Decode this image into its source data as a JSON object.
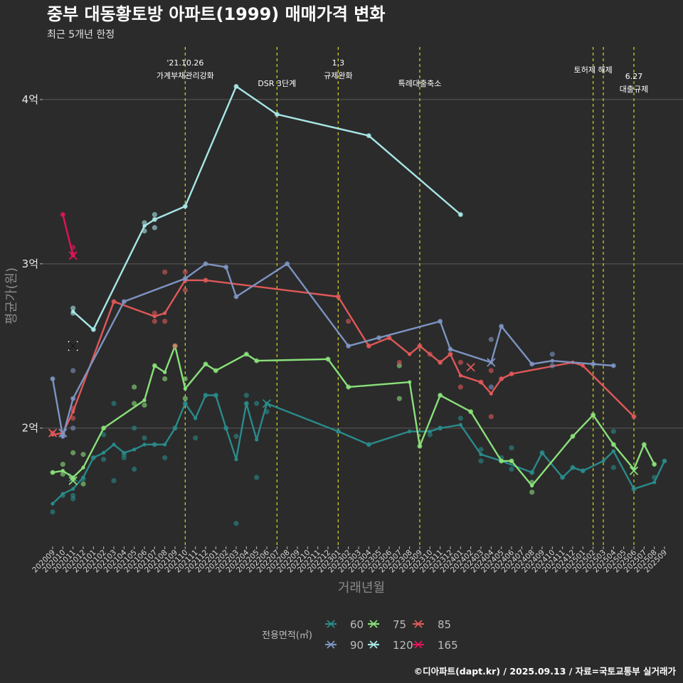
{
  "chart_data": {
    "type": "line",
    "title": "중부 대동황토방 아파트(1999) 매매가격 변화",
    "subtitle": "최근 5개년 한정",
    "xlabel": "거래년월",
    "ylabel": "평균가(원)",
    "y_ticks": [
      {
        "value": 2.0,
        "label": "2억"
      },
      {
        "value": 3.0,
        "label": "3억"
      },
      {
        "value": 4.0,
        "label": "4억"
      }
    ],
    "ylim": [
      1.28,
      4.32
    ],
    "grid": true,
    "legend_position": "bottom",
    "legend_title": "전용면적(㎡)",
    "credit": "©디아파트(dapt.kr) / 2025.09.13 / 자료=국토교통부 실거래가",
    "months": [
      "202009",
      "202010",
      "202011",
      "202012",
      "202101",
      "202102",
      "202103",
      "202104",
      "202105",
      "202106",
      "202107",
      "202108",
      "202109",
      "202110",
      "202111",
      "202112",
      "202201",
      "202202",
      "202203",
      "202204",
      "202205",
      "202206",
      "202207",
      "202208",
      "202209",
      "202210",
      "202211",
      "202212",
      "202301",
      "202302",
      "202303",
      "202304",
      "202305",
      "202306",
      "202307",
      "202308",
      "202309",
      "202310",
      "202311",
      "202312",
      "202401",
      "202402",
      "202403",
      "202404",
      "202405",
      "202406",
      "202407",
      "202408",
      "202409",
      "202410",
      "202411",
      "202412",
      "202501",
      "202502",
      "202503",
      "202504",
      "202505",
      "202506",
      "202507",
      "202508",
      "202509"
    ],
    "annotations": [
      {
        "x": 13,
        "lines": [
          "'21.10.26",
          "가계부채관리강화"
        ]
      },
      {
        "x": 22,
        "lines": [
          "DSR 3단계"
        ]
      },
      {
        "x": 28,
        "lines": [
          "1.3",
          "규제완화"
        ]
      },
      {
        "x": 36,
        "lines": [
          "특례대출축소"
        ]
      },
      {
        "x": 53,
        "lines": [
          "토허제 해제"
        ]
      },
      {
        "x": 54,
        "lines": []
      },
      {
        "x": 57,
        "lines": [
          "6.27",
          "대출규제"
        ]
      }
    ],
    "series": [
      {
        "name": "60",
        "color": "#2a8a8a",
        "line": [
          [
            0,
            1.54
          ],
          [
            1,
            1.6
          ],
          [
            2,
            1.63
          ],
          [
            3,
            1.7
          ],
          [
            4,
            1.82
          ],
          [
            5,
            1.85
          ],
          [
            6,
            1.9
          ],
          [
            7,
            1.85
          ],
          [
            8,
            1.87
          ],
          [
            9,
            1.9
          ],
          [
            10,
            1.9
          ],
          [
            11,
            1.9
          ],
          [
            12,
            2.0
          ],
          [
            13,
            2.15
          ],
          [
            14,
            2.06
          ],
          [
            15,
            2.2
          ],
          [
            16,
            2.2
          ],
          [
            17,
            2.0
          ],
          [
            18,
            1.81
          ],
          [
            19,
            2.15
          ],
          [
            20,
            1.93
          ],
          [
            21,
            2.15
          ],
          [
            28,
            1.98
          ],
          [
            31,
            1.9
          ],
          [
            35,
            1.98
          ],
          [
            37,
            1.98
          ],
          [
            38,
            2.0
          ],
          [
            40,
            2.02
          ],
          [
            42,
            1.84
          ],
          [
            44,
            1.8
          ],
          [
            47,
            1.73
          ],
          [
            48,
            1.85
          ],
          [
            50,
            1.7
          ],
          [
            51,
            1.76
          ],
          [
            52,
            1.74
          ],
          [
            54,
            1.8
          ],
          [
            55,
            1.86
          ],
          [
            57,
            1.63
          ],
          [
            59,
            1.67
          ],
          [
            60,
            1.8
          ]
        ],
        "points": [
          [
            0,
            1.49
          ],
          [
            1,
            1.59
          ],
          [
            2,
            1.57
          ],
          [
            2,
            1.59
          ],
          [
            3,
            1.69
          ],
          [
            4,
            1.82
          ],
          [
            5,
            1.96
          ],
          [
            5,
            1.81
          ],
          [
            6,
            2.15
          ],
          [
            6,
            1.68
          ],
          [
            7,
            1.84
          ],
          [
            7,
            1.82
          ],
          [
            8,
            2.0
          ],
          [
            8,
            1.75
          ],
          [
            9,
            1.94
          ],
          [
            10,
            1.9
          ],
          [
            11,
            1.82
          ],
          [
            12,
            2.0
          ],
          [
            13,
            2.15
          ],
          [
            14,
            1.94
          ],
          [
            15,
            2.2
          ],
          [
            16,
            2.2
          ],
          [
            17,
            2.0
          ],
          [
            18,
            1.95
          ],
          [
            18,
            1.42
          ],
          [
            19,
            2.2
          ],
          [
            19,
            2.15
          ],
          [
            20,
            1.7
          ],
          [
            20,
            2.15
          ],
          [
            21,
            2.1
          ],
          [
            28,
            1.98
          ],
          [
            31,
            1.9
          ],
          [
            37,
            1.96
          ],
          [
            38,
            2.0
          ],
          [
            40,
            2.06
          ],
          [
            42,
            1.87
          ],
          [
            42,
            1.8
          ],
          [
            44,
            1.82
          ],
          [
            45,
            1.75
          ],
          [
            45,
            1.88
          ],
          [
            47,
            1.73
          ],
          [
            48,
            1.85
          ],
          [
            50,
            1.7
          ],
          [
            51,
            1.76
          ],
          [
            52,
            1.74
          ],
          [
            55,
            1.98
          ],
          [
            55,
            1.76
          ],
          [
            57,
            1.63
          ],
          [
            59,
            1.7
          ],
          [
            60,
            1.8
          ]
        ],
        "x_marks": [
          [
            2,
            1.7
          ],
          [
            21,
            2.15
          ]
        ]
      },
      {
        "name": "75",
        "color": "#8ae07a",
        "line": [
          [
            0,
            1.73
          ],
          [
            1,
            1.74
          ],
          [
            2,
            1.7
          ],
          [
            3,
            1.76
          ],
          [
            5,
            2.0
          ],
          [
            9,
            2.17
          ],
          [
            10,
            2.38
          ],
          [
            11,
            2.34
          ],
          [
            12,
            2.5
          ],
          [
            13,
            2.24
          ],
          [
            15,
            2.39
          ],
          [
            16,
            2.35
          ],
          [
            19,
            2.45
          ],
          [
            20,
            2.41
          ],
          [
            27,
            2.42
          ],
          [
            29,
            2.25
          ],
          [
            35,
            2.28
          ],
          [
            36,
            1.89
          ],
          [
            38,
            2.2
          ],
          [
            41,
            2.1
          ],
          [
            44,
            1.8
          ],
          [
            45,
            1.8
          ],
          [
            47,
            1.65
          ],
          [
            51,
            1.95
          ],
          [
            53,
            2.08
          ],
          [
            55,
            1.9
          ],
          [
            57,
            1.75
          ],
          [
            58,
            1.9
          ],
          [
            59,
            1.78
          ]
        ],
        "points": [
          [
            0,
            1.73
          ],
          [
            1,
            1.78
          ],
          [
            1,
            1.72
          ],
          [
            2,
            1.85
          ],
          [
            2,
            1.69
          ],
          [
            3,
            1.84
          ],
          [
            3,
            1.66
          ],
          [
            5,
            2.0
          ],
          [
            8,
            2.25
          ],
          [
            8,
            2.15
          ],
          [
            9,
            2.14
          ],
          [
            10,
            2.38
          ],
          [
            11,
            2.3
          ],
          [
            12,
            2.5
          ],
          [
            13,
            2.3
          ],
          [
            13,
            2.18
          ],
          [
            15,
            2.39
          ],
          [
            16,
            2.35
          ],
          [
            19,
            2.45
          ],
          [
            20,
            2.41
          ],
          [
            27,
            2.42
          ],
          [
            29,
            2.25
          ],
          [
            34,
            2.38
          ],
          [
            34,
            2.18
          ],
          [
            36,
            1.89
          ],
          [
            38,
            2.2
          ],
          [
            41,
            2.1
          ],
          [
            44,
            1.8
          ],
          [
            45,
            1.8
          ],
          [
            47,
            1.61
          ],
          [
            47,
            1.67
          ],
          [
            51,
            1.95
          ],
          [
            53,
            2.08
          ],
          [
            55,
            1.9
          ],
          [
            58,
            1.9
          ],
          [
            59,
            1.78
          ]
        ],
        "x_marks": [
          [
            2,
            1.68
          ],
          [
            57,
            1.74
          ]
        ]
      },
      {
        "name": "85",
        "color": "#e05858",
        "line": [
          [
            0,
            1.96
          ],
          [
            1,
            1.97
          ],
          [
            2,
            2.1
          ],
          [
            6,
            2.77
          ],
          [
            10,
            2.68
          ],
          [
            11,
            2.7
          ],
          [
            13,
            2.9
          ],
          [
            15,
            2.9
          ],
          [
            28,
            2.8
          ],
          [
            31,
            2.5
          ],
          [
            33,
            2.55
          ],
          [
            35,
            2.45
          ],
          [
            36,
            2.5
          ],
          [
            38,
            2.4
          ],
          [
            39,
            2.45
          ],
          [
            40,
            2.32
          ],
          [
            42,
            2.28
          ],
          [
            43,
            2.21
          ],
          [
            44,
            2.3
          ],
          [
            45,
            2.33
          ],
          [
            51,
            2.4
          ],
          [
            52,
            2.38
          ],
          [
            57,
            2.07
          ]
        ],
        "points": [
          [
            0,
            1.97
          ],
          [
            1,
            1.97
          ],
          [
            2,
            2.06
          ],
          [
            2,
            2.12
          ],
          [
            6,
            2.77
          ],
          [
            10,
            2.65
          ],
          [
            10,
            2.7
          ],
          [
            11,
            2.65
          ],
          [
            11,
            2.95
          ],
          [
            12,
            2.5
          ],
          [
            13,
            2.9
          ],
          [
            13,
            2.84
          ],
          [
            13,
            2.95
          ],
          [
            15,
            2.9
          ],
          [
            28,
            2.8
          ],
          [
            29,
            2.65
          ],
          [
            31,
            2.5
          ],
          [
            33,
            2.55
          ],
          [
            34,
            2.4
          ],
          [
            36,
            2.5
          ],
          [
            37,
            2.45
          ],
          [
            38,
            2.4
          ],
          [
            39,
            2.45
          ],
          [
            40,
            2.4
          ],
          [
            40,
            2.25
          ],
          [
            42,
            2.28
          ],
          [
            43,
            2.35
          ],
          [
            43,
            2.07
          ],
          [
            44,
            2.3
          ],
          [
            45,
            2.33
          ],
          [
            57,
            2.07
          ]
        ],
        "x_marks": [
          [
            0,
            1.97
          ],
          [
            41,
            2.37
          ]
        ]
      },
      {
        "name": "90",
        "color": "#7d94c2",
        "line": [
          [
            0,
            2.3
          ],
          [
            1,
            1.95
          ],
          [
            2,
            2.18
          ],
          [
            7,
            2.77
          ],
          [
            13,
            2.91
          ],
          [
            15,
            3.0
          ],
          [
            17,
            2.98
          ],
          [
            18,
            2.8
          ],
          [
            23,
            3.0
          ],
          [
            29,
            2.5
          ],
          [
            32,
            2.55
          ],
          [
            38,
            2.65
          ],
          [
            39,
            2.48
          ],
          [
            43,
            2.4
          ],
          [
            44,
            2.62
          ],
          [
            47,
            2.39
          ],
          [
            49,
            2.41
          ],
          [
            53,
            2.39
          ],
          [
            55,
            2.38
          ]
        ],
        "points": [
          [
            0,
            2.3
          ],
          [
            1,
            1.95
          ],
          [
            2,
            2.35
          ],
          [
            2,
            2.18
          ],
          [
            2,
            2.0
          ],
          [
            7,
            2.77
          ],
          [
            13,
            2.91
          ],
          [
            15,
            3.0
          ],
          [
            17,
            2.98
          ],
          [
            18,
            2.8
          ],
          [
            23,
            3.0
          ],
          [
            29,
            2.5
          ],
          [
            32,
            2.55
          ],
          [
            38,
            2.65
          ],
          [
            39,
            2.48
          ],
          [
            43,
            2.54
          ],
          [
            43,
            2.25
          ],
          [
            44,
            2.62
          ],
          [
            47,
            2.39
          ],
          [
            49,
            2.45
          ],
          [
            49,
            2.38
          ],
          [
            53,
            2.39
          ],
          [
            55,
            2.38
          ]
        ],
        "x_marks": [
          [
            1,
            1.97
          ],
          [
            43,
            2.4
          ]
        ]
      },
      {
        "name": "120",
        "color": "#a8e6e6",
        "line": [
          [
            2,
            2.71
          ],
          [
            4,
            2.6
          ],
          [
            9,
            3.23
          ],
          [
            10,
            3.27
          ],
          [
            13,
            3.35
          ],
          [
            18,
            4.08
          ],
          [
            22,
            3.91
          ],
          [
            31,
            3.78
          ],
          [
            40,
            3.3
          ]
        ],
        "points": [
          [
            2,
            2.73
          ],
          [
            2,
            2.7
          ],
          [
            4,
            2.6
          ],
          [
            9,
            3.25
          ],
          [
            9,
            3.2
          ],
          [
            10,
            3.27
          ],
          [
            10,
            3.3
          ],
          [
            10,
            3.22
          ],
          [
            13,
            3.35
          ],
          [
            18,
            4.08
          ],
          [
            22,
            3.91
          ],
          [
            31,
            3.78
          ],
          [
            40,
            3.3
          ]
        ],
        "x_marks": [
          [
            2,
            2.5
          ]
        ]
      },
      {
        "name": "165",
        "color": "#e0145a",
        "line": [
          [
            1,
            3.3
          ],
          [
            2,
            3.05
          ]
        ],
        "points": [
          [
            1,
            3.3
          ],
          [
            2,
            3.1
          ],
          [
            2,
            3.06
          ]
        ],
        "x_marks": [
          [
            2,
            3.05
          ]
        ]
      }
    ]
  }
}
